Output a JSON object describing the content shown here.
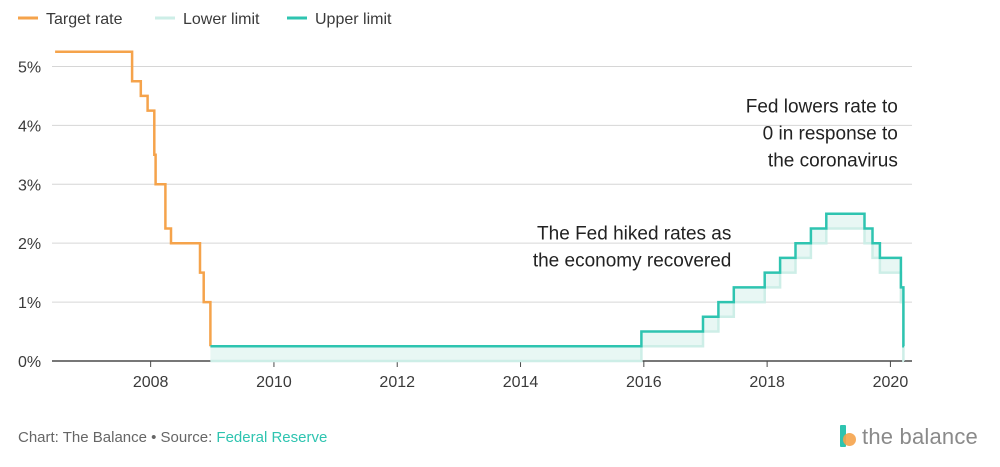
{
  "legend": [
    {
      "label": "Target rate",
      "color": "#f5a34b"
    },
    {
      "label": "Lower limit",
      "color": "#cdeee7"
    },
    {
      "label": "Upper limit",
      "color": "#2ec4b0"
    }
  ],
  "footer": {
    "prefix": "Chart: The Balance • Source: ",
    "source": "Federal Reserve"
  },
  "logo": {
    "text": "the balance"
  },
  "chart_data": {
    "type": "line",
    "step": true,
    "title": "",
    "xlabel": "",
    "ylabel": "",
    "xlim": [
      2006.4,
      2020.35
    ],
    "ylim": [
      0,
      5.5
    ],
    "x_ticks": [
      2008,
      2010,
      2012,
      2014,
      2016,
      2018,
      2020
    ],
    "x_tick_labels": [
      "2008",
      "2010",
      "2012",
      "2014",
      "2016",
      "2018",
      "2020"
    ],
    "y_ticks": [
      0,
      1,
      2,
      3,
      4,
      5
    ],
    "y_tick_labels": [
      "0%",
      "1%",
      "2%",
      "3%",
      "4%",
      "5%"
    ],
    "grid": "horizontal",
    "legend_position": "top-left",
    "colors": {
      "target": "#f5a34b",
      "lower": "#cdeee7",
      "upper": "#2ec4b0",
      "band": "#e8f7f4"
    },
    "series": [
      {
        "name": "Target rate",
        "points": [
          [
            2006.45,
            5.25
          ],
          [
            2007.7,
            4.75
          ],
          [
            2007.84,
            4.5
          ],
          [
            2007.95,
            4.25
          ],
          [
            2008.06,
            3.5
          ],
          [
            2008.08,
            3.0
          ],
          [
            2008.24,
            2.25
          ],
          [
            2008.33,
            2.0
          ],
          [
            2008.8,
            1.5
          ],
          [
            2008.86,
            1.0
          ],
          [
            2008.97,
            0.25
          ]
        ]
      },
      {
        "name": "Lower limit",
        "points": [
          [
            2008.97,
            0.0
          ],
          [
            2015.96,
            0.25
          ],
          [
            2016.96,
            0.5
          ],
          [
            2017.21,
            0.75
          ],
          [
            2017.46,
            1.0
          ],
          [
            2017.96,
            1.25
          ],
          [
            2018.21,
            1.5
          ],
          [
            2018.46,
            1.75
          ],
          [
            2018.71,
            2.0
          ],
          [
            2018.96,
            2.25
          ],
          [
            2019.58,
            2.0
          ],
          [
            2019.71,
            1.75
          ],
          [
            2019.83,
            1.5
          ],
          [
            2020.17,
            1.0
          ],
          [
            2020.21,
            0.0
          ]
        ]
      },
      {
        "name": "Upper limit",
        "points": [
          [
            2008.97,
            0.25
          ],
          [
            2015.96,
            0.5
          ],
          [
            2016.96,
            0.75
          ],
          [
            2017.21,
            1.0
          ],
          [
            2017.46,
            1.25
          ],
          [
            2017.96,
            1.5
          ],
          [
            2018.21,
            1.75
          ],
          [
            2018.46,
            2.0
          ],
          [
            2018.71,
            2.25
          ],
          [
            2018.96,
            2.5
          ],
          [
            2019.58,
            2.25
          ],
          [
            2019.71,
            2.0
          ],
          [
            2019.83,
            1.75
          ],
          [
            2020.17,
            1.25
          ],
          [
            2020.21,
            0.25
          ]
        ]
      }
    ],
    "end_x": 2020.22,
    "annotations": [
      {
        "lines": [
          "The Fed hiked rates as",
          "the economy recovered"
        ],
        "anchor_x": 2017.55,
        "anchor_y": 1.6
      },
      {
        "lines": [
          "Fed lowers rate to",
          "0 in response to",
          "the coronavirus"
        ],
        "anchor_x": 2020.25,
        "anchor_y": 3.3
      }
    ]
  }
}
